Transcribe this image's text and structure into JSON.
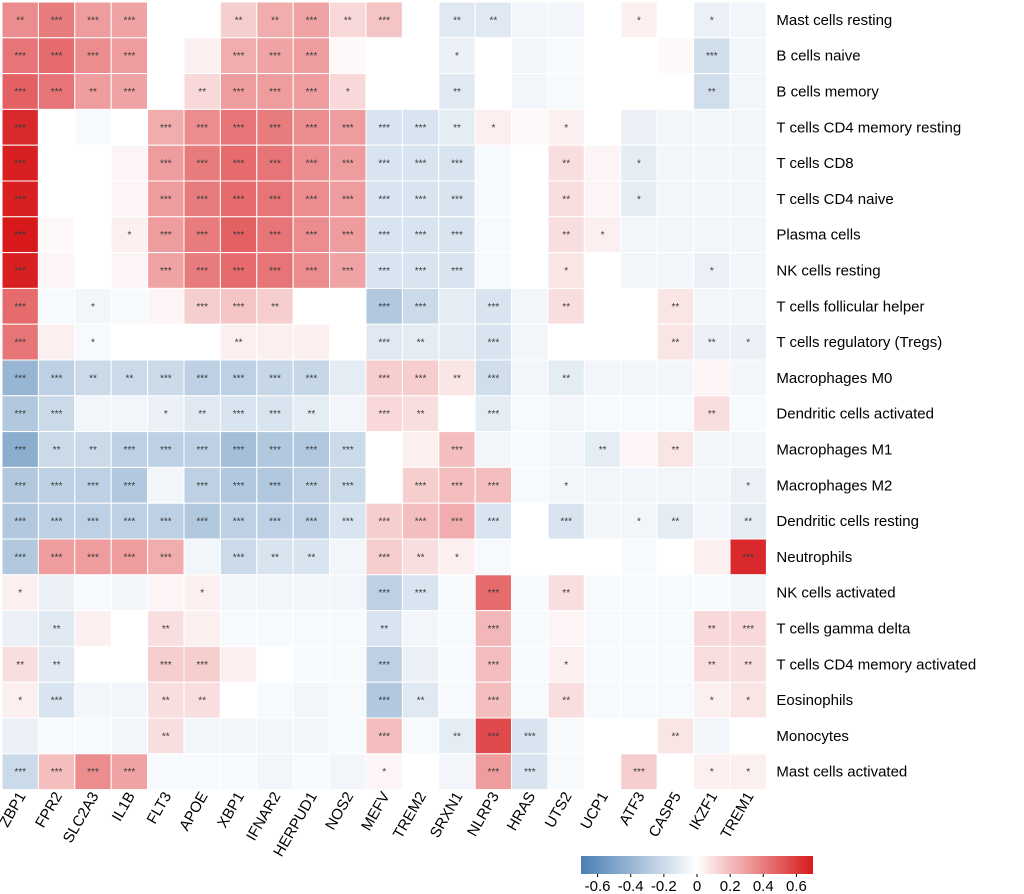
{
  "chart_data": {
    "type": "heatmap",
    "title": "",
    "columns": [
      "ZBP1",
      "FPR2",
      "SLC2A3",
      "IL1B",
      "FLT3",
      "APOE",
      "XBP1",
      "IFNAR2",
      "HERPUD1",
      "NOS2",
      "MEFV",
      "TREM2",
      "SRXN1",
      "NLRP3",
      "HRAS",
      "UTS2",
      "UCP1",
      "ATF3",
      "CASP5",
      "IKZF1",
      "TREM1"
    ],
    "rows": [
      "Mast cells resting",
      "B cells naive",
      "B cells memory",
      "T cells CD4 memory resting",
      "T cells CD8",
      "T cells CD4 naive",
      "Plasma cells",
      "NK cells resting",
      "T cells follicular helper",
      "T cells regulatory (Tregs)",
      "Macrophages M0",
      "Dendritic cells activated",
      "Macrophages M1",
      "Macrophages M2",
      "Dendritic cells resting",
      "Neutrophils",
      "NK cells activated",
      "T cells gamma delta",
      "T cells CD4 memory activated",
      "Eosinophils",
      "Monocytes",
      "Mast cells activated"
    ],
    "values": [
      [
        0.35,
        0.4,
        0.3,
        0.28,
        0.0,
        0.0,
        0.15,
        0.25,
        0.28,
        0.12,
        0.18,
        0.0,
        -0.12,
        -0.12,
        -0.05,
        -0.05,
        0.0,
        0.05,
        0.0,
        -0.08,
        -0.05
      ],
      [
        0.42,
        0.45,
        0.35,
        0.3,
        0.0,
        0.05,
        0.25,
        0.28,
        0.3,
        0.02,
        0.0,
        0.0,
        -0.08,
        0.0,
        -0.05,
        -0.03,
        0.0,
        0.0,
        0.02,
        -0.18,
        -0.05
      ],
      [
        0.48,
        0.42,
        0.3,
        0.28,
        0.0,
        0.12,
        0.3,
        0.3,
        0.3,
        0.12,
        0.0,
        0.0,
        -0.12,
        0.0,
        -0.05,
        -0.03,
        0.0,
        0.0,
        0.0,
        -0.18,
        -0.05
      ],
      [
        0.65,
        0.0,
        -0.03,
        0.0,
        0.25,
        0.35,
        0.42,
        0.4,
        0.35,
        0.3,
        -0.15,
        -0.15,
        -0.1,
        0.05,
        0.02,
        0.05,
        0.0,
        -0.08,
        -0.05,
        -0.05,
        -0.05
      ],
      [
        0.68,
        0.0,
        0.0,
        0.03,
        0.3,
        0.4,
        0.45,
        0.42,
        0.35,
        0.3,
        -0.15,
        -0.15,
        -0.15,
        -0.03,
        0.0,
        0.1,
        0.03,
        -0.1,
        -0.05,
        -0.05,
        -0.05
      ],
      [
        0.68,
        0.0,
        0.0,
        0.03,
        0.3,
        0.4,
        0.45,
        0.42,
        0.35,
        0.3,
        -0.15,
        -0.15,
        -0.15,
        -0.03,
        0.0,
        0.1,
        0.03,
        -0.1,
        -0.05,
        -0.05,
        -0.05
      ],
      [
        0.7,
        0.02,
        0.0,
        0.05,
        0.3,
        0.4,
        0.48,
        0.42,
        0.35,
        0.3,
        -0.15,
        -0.15,
        -0.15,
        -0.03,
        0.0,
        0.1,
        0.05,
        -0.05,
        -0.05,
        -0.05,
        -0.05
      ],
      [
        0.68,
        0.03,
        0.0,
        0.03,
        0.28,
        0.4,
        0.45,
        0.42,
        0.35,
        0.28,
        -0.15,
        -0.15,
        -0.15,
        -0.03,
        0.0,
        0.08,
        0.0,
        -0.05,
        -0.05,
        -0.08,
        -0.05
      ],
      [
        0.45,
        -0.03,
        -0.05,
        -0.03,
        0.03,
        0.15,
        0.18,
        0.15,
        0.0,
        0.0,
        -0.3,
        -0.2,
        -0.1,
        -0.15,
        -0.05,
        0.1,
        0.0,
        0.0,
        0.08,
        -0.05,
        -0.05
      ],
      [
        0.42,
        0.05,
        -0.03,
        0.0,
        0.0,
        0.0,
        0.05,
        0.05,
        0.05,
        0.0,
        -0.12,
        -0.1,
        -0.1,
        -0.15,
        -0.05,
        0.0,
        0.0,
        0.0,
        0.08,
        -0.08,
        -0.08
      ],
      [
        -0.4,
        -0.25,
        -0.2,
        -0.2,
        -0.2,
        -0.25,
        -0.25,
        -0.22,
        -0.22,
        -0.1,
        0.15,
        0.15,
        0.08,
        -0.18,
        -0.05,
        -0.1,
        -0.05,
        -0.05,
        -0.05,
        0.03,
        -0.05
      ],
      [
        -0.3,
        -0.2,
        -0.05,
        -0.05,
        -0.08,
        -0.12,
        -0.15,
        -0.15,
        -0.1,
        -0.05,
        0.12,
        0.1,
        0.0,
        -0.1,
        -0.03,
        -0.05,
        -0.03,
        -0.03,
        -0.03,
        0.1,
        -0.03
      ],
      [
        -0.45,
        -0.2,
        -0.2,
        -0.25,
        -0.25,
        -0.25,
        -0.35,
        -0.3,
        -0.3,
        -0.2,
        0.0,
        0.05,
        0.2,
        -0.05,
        -0.03,
        -0.05,
        -0.1,
        0.03,
        0.08,
        -0.05,
        -0.05
      ],
      [
        -0.3,
        -0.25,
        -0.25,
        -0.3,
        -0.05,
        -0.25,
        -0.3,
        -0.3,
        -0.25,
        -0.2,
        0.0,
        0.15,
        0.2,
        0.2,
        -0.03,
        -0.05,
        -0.05,
        -0.05,
        -0.05,
        -0.05,
        -0.08
      ],
      [
        -0.3,
        -0.25,
        -0.25,
        -0.25,
        -0.25,
        -0.3,
        -0.25,
        -0.25,
        -0.25,
        -0.15,
        0.15,
        0.2,
        0.25,
        -0.15,
        0.0,
        -0.15,
        -0.05,
        -0.05,
        -0.1,
        -0.05,
        -0.1
      ],
      [
        -0.3,
        0.3,
        0.3,
        0.3,
        0.25,
        -0.05,
        -0.2,
        -0.15,
        -0.15,
        -0.05,
        0.15,
        0.1,
        0.05,
        -0.03,
        0.0,
        0.0,
        0.0,
        -0.03,
        0.0,
        0.05,
        0.65
      ],
      [
        0.05,
        -0.08,
        -0.03,
        -0.05,
        0.03,
        0.05,
        -0.05,
        -0.05,
        -0.05,
        -0.05,
        -0.25,
        -0.15,
        -0.03,
        0.45,
        -0.03,
        0.1,
        -0.03,
        -0.03,
        -0.03,
        -0.03,
        -0.05
      ],
      [
        -0.08,
        -0.12,
        0.05,
        0.0,
        0.1,
        0.05,
        -0.03,
        -0.03,
        -0.03,
        -0.03,
        -0.15,
        -0.05,
        -0.03,
        0.22,
        -0.03,
        0.03,
        -0.03,
        -0.03,
        -0.03,
        0.12,
        0.12
      ],
      [
        0.1,
        -0.12,
        0.0,
        0.0,
        0.15,
        0.15,
        0.05,
        0.0,
        -0.03,
        -0.03,
        -0.25,
        -0.08,
        -0.03,
        0.2,
        -0.03,
        0.05,
        -0.03,
        -0.03,
        -0.03,
        0.1,
        0.1
      ],
      [
        0.05,
        -0.15,
        -0.05,
        -0.05,
        0.1,
        0.1,
        0.0,
        -0.03,
        -0.05,
        -0.03,
        -0.3,
        -0.12,
        -0.03,
        0.2,
        -0.03,
        0.1,
        -0.03,
        -0.03,
        -0.03,
        0.05,
        0.08
      ],
      [
        -0.08,
        -0.03,
        -0.03,
        -0.05,
        0.1,
        -0.05,
        -0.05,
        -0.05,
        -0.05,
        -0.03,
        0.2,
        -0.03,
        -0.1,
        0.55,
        -0.15,
        -0.03,
        0.0,
        0.0,
        0.08,
        -0.05,
        0.0
      ],
      [
        -0.2,
        0.2,
        0.35,
        0.28,
        -0.03,
        -0.03,
        -0.03,
        -0.05,
        -0.03,
        -0.05,
        0.03,
        0.0,
        -0.05,
        0.3,
        -0.15,
        -0.03,
        0.0,
        0.15,
        0.0,
        0.05,
        0.05
      ]
    ],
    "significance": [
      [
        "**",
        "***",
        "***",
        "***",
        "",
        "",
        "**",
        "**",
        "***",
        "**",
        "***",
        "",
        "**",
        "**",
        "",
        "",
        "",
        "*",
        "",
        "*",
        ""
      ],
      [
        "***",
        "***",
        "***",
        "***",
        "",
        "",
        "***",
        "***",
        "***",
        "",
        "",
        "",
        "*",
        "",
        "",
        "",
        "",
        "",
        "",
        "***",
        ""
      ],
      [
        "***",
        "***",
        "**",
        "***",
        "",
        "**",
        "***",
        "***",
        "***",
        "*",
        "",
        "",
        "**",
        "",
        "",
        "",
        "",
        "",
        "",
        "**",
        ""
      ],
      [
        "***",
        "",
        "",
        "",
        "***",
        "***",
        "***",
        "***",
        "***",
        "***",
        "***",
        "***",
        "**",
        "*",
        "",
        "*",
        "",
        "",
        "",
        "",
        ""
      ],
      [
        "***",
        "",
        "",
        "",
        "***",
        "***",
        "***",
        "***",
        "***",
        "***",
        "***",
        "***",
        "***",
        "",
        "",
        "**",
        "",
        "*",
        "",
        "",
        ""
      ],
      [
        "***",
        "",
        "",
        "",
        "***",
        "***",
        "***",
        "***",
        "***",
        "***",
        "***",
        "***",
        "***",
        "",
        "",
        "**",
        "",
        "*",
        "",
        "",
        ""
      ],
      [
        "***",
        "",
        "",
        "*",
        "***",
        "***",
        "***",
        "***",
        "***",
        "***",
        "***",
        "***",
        "***",
        "",
        "",
        "**",
        "*",
        "",
        "",
        "",
        ""
      ],
      [
        "***",
        "",
        "",
        "",
        "***",
        "***",
        "***",
        "***",
        "***",
        "***",
        "***",
        "***",
        "***",
        "",
        "",
        "*",
        "",
        "",
        "",
        "*",
        ""
      ],
      [
        "***",
        "",
        "*",
        "",
        "",
        "***",
        "***",
        "**",
        "",
        "",
        "***",
        "***",
        "",
        "***",
        "",
        "**",
        "",
        "",
        "**",
        "",
        ""
      ],
      [
        "***",
        "",
        "*",
        "",
        "",
        "",
        "**",
        "",
        "",
        "",
        "***",
        "**",
        "",
        "***",
        "",
        "",
        "",
        "",
        "**",
        "**",
        "*"
      ],
      [
        "***",
        "***",
        "**",
        "**",
        "***",
        "***",
        "***",
        "***",
        "***",
        "",
        "***",
        "***",
        "**",
        "***",
        "",
        "**",
        "",
        "",
        "",
        "",
        ""
      ],
      [
        "***",
        "***",
        "",
        "",
        "*",
        "**",
        "***",
        "***",
        "**",
        "",
        "***",
        "**",
        "",
        "***",
        "",
        "",
        "",
        "",
        "",
        "**",
        ""
      ],
      [
        "***",
        "**",
        "**",
        "***",
        "***",
        "***",
        "***",
        "***",
        "***",
        "***",
        "",
        "",
        "***",
        "",
        "",
        "",
        "**",
        "",
        "**",
        "",
        ""
      ],
      [
        "***",
        "***",
        "***",
        "***",
        "",
        "***",
        "***",
        "***",
        "***",
        "***",
        "",
        "***",
        "***",
        "***",
        "",
        "*",
        "",
        "",
        "",
        "",
        "*"
      ],
      [
        "***",
        "***",
        "***",
        "***",
        "***",
        "***",
        "***",
        "***",
        "***",
        "***",
        "***",
        "***",
        "***",
        "***",
        "",
        "***",
        "",
        "*",
        "**",
        "",
        "**"
      ],
      [
        "***",
        "***",
        "***",
        "***",
        "***",
        "",
        "***",
        "**",
        "**",
        "",
        "***",
        "**",
        "*",
        "",
        "",
        "",
        "",
        "",
        "",
        "",
        "***"
      ],
      [
        "*",
        "",
        "",
        "",
        "",
        "*",
        "",
        "",
        "",
        "",
        "***",
        "***",
        "",
        "***",
        "",
        "**",
        "",
        "",
        "",
        "",
        ""
      ],
      [
        "",
        "**",
        "",
        "",
        "**",
        "",
        "",
        "",
        "",
        "",
        "**",
        "",
        "",
        "***",
        "",
        "",
        "",
        "",
        "",
        "**",
        "***"
      ],
      [
        "**",
        "**",
        "",
        "",
        "***",
        "***",
        "",
        "",
        "",
        "",
        "***",
        "",
        "",
        "***",
        "",
        "*",
        "",
        "",
        "",
        "**",
        "**"
      ],
      [
        "*",
        "***",
        "",
        "",
        "**",
        "**",
        "",
        "",
        "",
        "",
        "***",
        "**",
        "",
        "***",
        "",
        "**",
        "",
        "",
        "",
        "*",
        "*"
      ],
      [
        "",
        "",
        "",
        "",
        "**",
        "",
        "",
        "",
        "",
        "",
        "***",
        "",
        "**",
        "***",
        "***",
        "",
        "",
        "",
        "**",
        "",
        ""
      ],
      [
        "***",
        "***",
        "***",
        "***",
        "",
        "",
        "",
        "",
        "",
        "",
        "*",
        "",
        "",
        "***",
        "***",
        "",
        "",
        "***",
        "",
        "*",
        "*"
      ]
    ],
    "colorbar": {
      "range": [
        -0.7,
        0.7
      ],
      "ticks": [
        -0.6,
        -0.4,
        -0.2,
        0,
        0.2,
        0.4,
        0.6
      ],
      "tick_labels": [
        "-0.6",
        "-0.4",
        "-0.2",
        "0",
        "0.2",
        "0.4",
        "0.6"
      ]
    },
    "colors": {
      "negative": "#4a7fb3",
      "neutral": "#ffffff",
      "positive": "#d7191c"
    }
  }
}
